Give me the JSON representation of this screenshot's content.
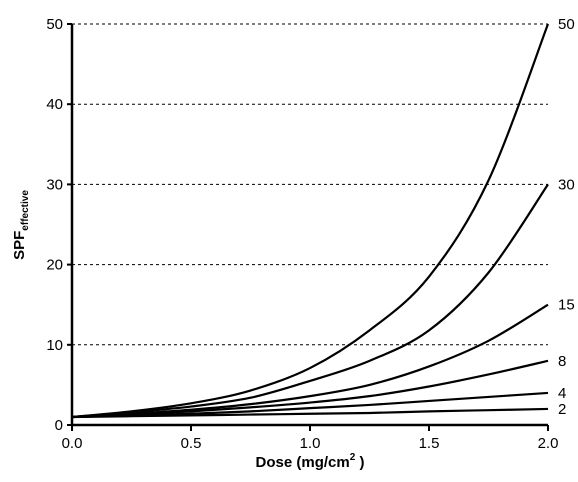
{
  "chart_data": {
    "type": "line",
    "title": "",
    "xlabel": "Dose (mg/cm",
    "xlabel_sup": "2",
    "xlabel_close": " )",
    "ylabel_main": "SPF",
    "ylabel_sub": "effective",
    "xlim": [
      0.0,
      2.0
    ],
    "ylim": [
      0,
      50
    ],
    "x_ticks": [
      "0.0",
      "0.5",
      "1.0",
      "1.5",
      "2.0"
    ],
    "y_ticks": [
      "0",
      "10",
      "20",
      "30",
      "40",
      "50"
    ],
    "grid": "horizontal dashed",
    "x": [
      0.0,
      0.25,
      0.5,
      0.75,
      1.0,
      1.25,
      1.5,
      1.75,
      2.0
    ],
    "series": [
      {
        "name": "50",
        "values": [
          1.0,
          1.7,
          2.7,
          4.3,
          7.1,
          11.8,
          18.5,
          30.5,
          50.0
        ]
      },
      {
        "name": "30",
        "values": [
          1.0,
          1.6,
          2.3,
          3.4,
          5.5,
          8.0,
          11.8,
          19.0,
          30.0
        ]
      },
      {
        "name": "15",
        "values": [
          1.0,
          1.4,
          1.9,
          2.6,
          3.6,
          5.0,
          7.3,
          10.5,
          15.0
        ]
      },
      {
        "name": "8",
        "values": [
          1.0,
          1.3,
          1.7,
          2.2,
          2.8,
          3.6,
          4.8,
          6.3,
          8.0
        ]
      },
      {
        "name": "4",
        "values": [
          1.0,
          1.2,
          1.4,
          1.7,
          2.1,
          2.5,
          3.0,
          3.5,
          4.0
        ]
      },
      {
        "name": "2",
        "values": [
          1.0,
          1.1,
          1.2,
          1.3,
          1.4,
          1.5,
          1.7,
          1.85,
          2.0
        ]
      }
    ],
    "line_color": "#000000"
  }
}
